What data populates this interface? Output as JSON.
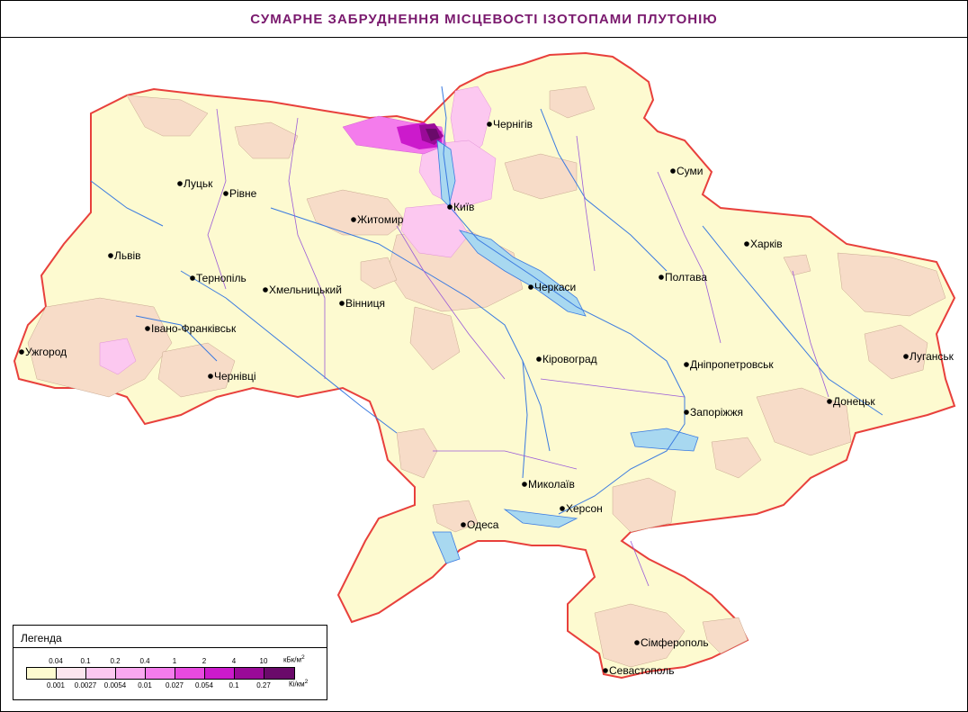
{
  "title": "СУМАРНЕ ЗАБРУДНЕННЯ МІСЦЕВОСТІ ІЗОТОПАМИ ПЛУТОНІЮ",
  "legend": {
    "title": "Легенда",
    "top_values": [
      "0.04",
      "0.1",
      "0.2",
      "0.4",
      "1",
      "2",
      "4",
      "10"
    ],
    "top_unit": "кБк/м",
    "top_unit_sup": "2",
    "bottom_values": [
      "0.001",
      "0.0027",
      "0.0054",
      "0.01",
      "0.027",
      "0.054",
      "0.1",
      "0.27"
    ],
    "bottom_unit": "Кі/км",
    "bottom_unit_sup": "2",
    "colors": [
      "#fdfad0",
      "#fce6ee",
      "#fcc8f0",
      "#f9a8f0",
      "#f47cec",
      "#e84ae0",
      "#cc1acc",
      "#9a0a98",
      "#6a0a6a"
    ]
  },
  "map_colors": {
    "background_zone": "#fdfad0",
    "zone2": "#f7dcc8",
    "zone3": "#fcc8f0",
    "zone4": "#f47cec",
    "zone5": "#cc1acc",
    "hot": "#6a0a6a",
    "border": "#e8403c",
    "rivers": "#3a7ae0",
    "water": "#a8d8f0",
    "admin": "#9a5ad8"
  },
  "cities": [
    {
      "name": "Чернігів"
    },
    {
      "name": "Суми"
    },
    {
      "name": "Луцьк"
    },
    {
      "name": "Рівне"
    },
    {
      "name": "Житомир"
    },
    {
      "name": "Київ"
    },
    {
      "name": "Харків"
    },
    {
      "name": "Львів"
    },
    {
      "name": "Тернопіль"
    },
    {
      "name": "Хмельницький"
    },
    {
      "name": "Полтава"
    },
    {
      "name": "Черкаси"
    },
    {
      "name": "Вінниця"
    },
    {
      "name": "Івано-Франківськ"
    },
    {
      "name": "Ужгород"
    },
    {
      "name": "Чернівці"
    },
    {
      "name": "Кіровоград"
    },
    {
      "name": "Дніпропетровськ"
    },
    {
      "name": "Луганськ"
    },
    {
      "name": "Донецьк"
    },
    {
      "name": "Запоріжжя"
    },
    {
      "name": "Миколаїв"
    },
    {
      "name": "Херсон"
    },
    {
      "name": "Одеса"
    },
    {
      "name": "Сімферополь"
    },
    {
      "name": "Севастополь"
    }
  ]
}
